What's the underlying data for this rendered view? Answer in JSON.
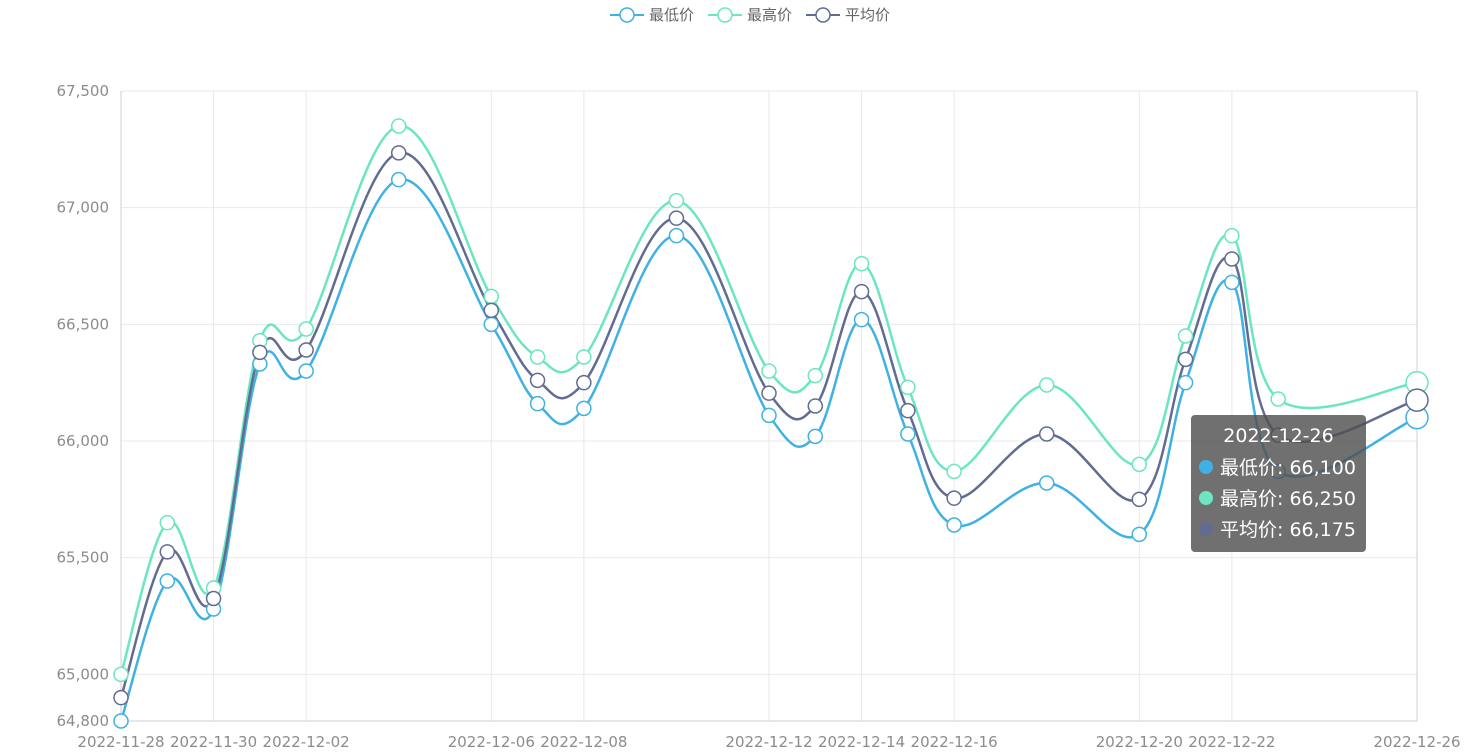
{
  "legend": {
    "items": [
      {
        "label": "最低价",
        "color": "#3fb1e3"
      },
      {
        "label": "最高价",
        "color": "#6be6c1"
      },
      {
        "label": "平均价",
        "color": "#626c91"
      }
    ]
  },
  "tooltip": {
    "title": "2022-12-26",
    "rows": [
      {
        "text": "最低价: 66,100",
        "color": "#3fb1e3"
      },
      {
        "text": "最高价: 66,250",
        "color": "#6be6c1"
      },
      {
        "text": "平均价: 66,175",
        "color": "#626c91"
      }
    ]
  },
  "chart_data": {
    "type": "line",
    "x": [
      "2022-11-28",
      "2022-11-29",
      "2022-11-30",
      "2022-12-01",
      "2022-12-02",
      "2022-12-04",
      "2022-12-06",
      "2022-12-07",
      "2022-12-08",
      "2022-12-10",
      "2022-12-12",
      "2022-12-13",
      "2022-12-14",
      "2022-12-15",
      "2022-12-16",
      "2022-12-18",
      "2022-12-20",
      "2022-12-21",
      "2022-12-22",
      "2022-12-23",
      "2022-12-26"
    ],
    "x_tick_labels": [
      "2022-11-28",
      "2022-11-30",
      "2022-12-02",
      "2022-12-06",
      "2022-12-08",
      "2022-12-12",
      "2022-12-14",
      "2022-12-16",
      "2022-12-20",
      "2022-12-22",
      "2022-12-26"
    ],
    "series": [
      {
        "name": "最低价",
        "color": "#3fb1e3",
        "values": [
          64800,
          65400,
          65280,
          66330,
          66300,
          67120,
          66500,
          66160,
          66140,
          66880,
          66110,
          66020,
          66520,
          66030,
          65640,
          65820,
          65600,
          66250,
          66680,
          65870,
          66100
        ]
      },
      {
        "name": "最高价",
        "color": "#6be6c1",
        "values": [
          65000,
          65650,
          65370,
          66430,
          66480,
          67350,
          66620,
          66360,
          66360,
          67030,
          66300,
          66280,
          66760,
          66230,
          65870,
          66240,
          65900,
          66450,
          66880,
          66180,
          66250
        ]
      },
      {
        "name": "平均价",
        "color": "#626c91",
        "values": [
          64900,
          65525,
          65325,
          66380,
          66390,
          67235,
          66560,
          66260,
          66250,
          66955,
          66205,
          66150,
          66640,
          66130,
          65755,
          66030,
          65750,
          66350,
          66780,
          66025,
          66175
        ]
      }
    ],
    "y_ticks": [
      64800,
      65000,
      65500,
      66000,
      66500,
      67000,
      67500
    ],
    "y_tick_labels": [
      "64,800",
      "65,000",
      "65,500",
      "66,000",
      "66,500",
      "67,000",
      "67,500"
    ],
    "ylim": [
      64800,
      67500
    ],
    "grid": true,
    "legend_position": "top-center"
  }
}
